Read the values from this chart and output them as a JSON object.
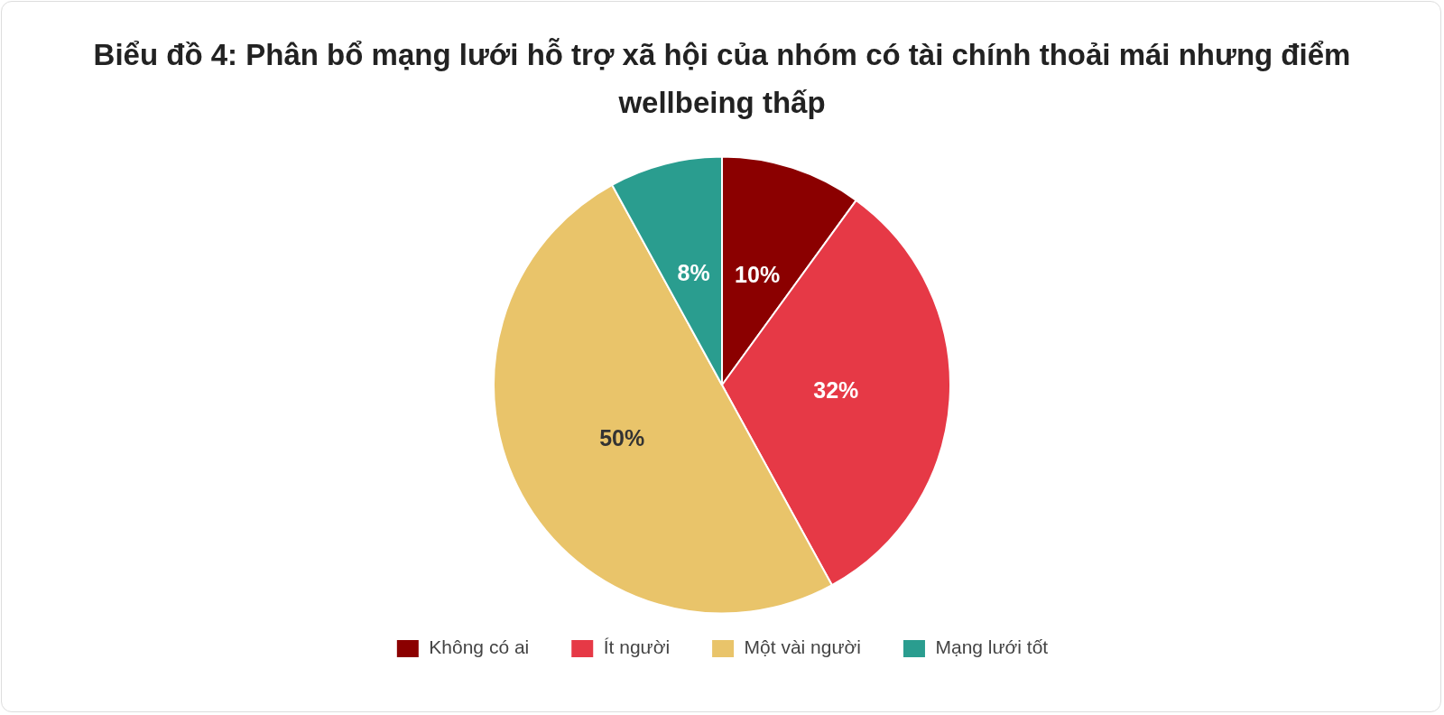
{
  "chart_data": {
    "type": "pie",
    "title": "Biểu đồ 4: Phân bổ mạng lưới hỗ trợ xã hội của nhóm có tài chính thoải mái nhưng điểm wellbeing thấp",
    "categories": [
      "Không có ai",
      "Ít người",
      "Một vài người",
      "Mạng lưới tốt"
    ],
    "values": [
      10,
      32,
      50,
      8
    ],
    "colors": [
      "#8b0000",
      "#e63946",
      "#e9c46a",
      "#2a9d8f"
    ],
    "value_labels": [
      "10%",
      "32%",
      "50%",
      "8%"
    ],
    "legend": "bottom"
  }
}
